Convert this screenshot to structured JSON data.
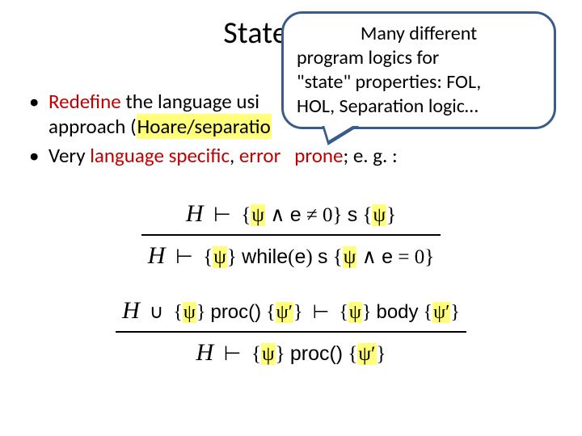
{
  "colors": {
    "background": "#ffffff",
    "text": "#000000",
    "bullet1_accent": "#c00000",
    "highlight_bg": "#ffff7a",
    "callout_border": "#385d8a",
    "rule_line": "#000000"
  },
  "typography": {
    "body_font": "Calibri",
    "math_font": "Cambria Math",
    "title_fontsize": 38,
    "bullet_fontsize": 25,
    "callout_fontsize": 24,
    "math_fontsize": 25
  },
  "title": "State-of-th",
  "bullets": {
    "b1": {
      "red_prefix": "Redefine",
      "mid": " the language usi",
      "line2_pre": "approach (",
      "line2_hl": "Hoare/separatio",
      "line2_post_tail": "                                                  "
    },
    "b2": {
      "pre": "Very ",
      "em1": "language specific",
      "mid": ", ",
      "em2_a": "error",
      "em2_b": "prone",
      "post": "; e. g. :"
    }
  },
  "callout": {
    "line1": "Many different",
    "line2": "program logics for",
    "line3": "\"state\" properties: FOL,",
    "line4": "HOL, Separation logic…"
  },
  "math": {
    "rule1": {
      "top": {
        "H": "H",
        "turnstile": "⊢",
        "lb": "{",
        "rb": "}",
        "psi": "ψ",
        "and": "∧",
        "e": "e",
        "neq": "≠",
        "zero": "0",
        "s": "s"
      },
      "bot": {
        "H": "H",
        "turnstile": "⊢",
        "lb": "{",
        "rb": "}",
        "psi": "ψ",
        "while": "while",
        "e": "e",
        "s": "s",
        "and": "∧",
        "eq": "=",
        "zero": "0"
      }
    },
    "rule2": {
      "top": {
        "H": "H",
        "cup": "∪",
        "lb": "{",
        "rb": "}",
        "psi": "ψ",
        "proc": "proc()",
        "psip": "ψ′",
        "turnstile": "⊢",
        "body": "body"
      },
      "bot": {
        "H": "H",
        "turnstile": "⊢",
        "lb": "{",
        "rb": "}",
        "psi": "ψ",
        "proc": "proc()",
        "psip": "ψ′"
      }
    }
  }
}
